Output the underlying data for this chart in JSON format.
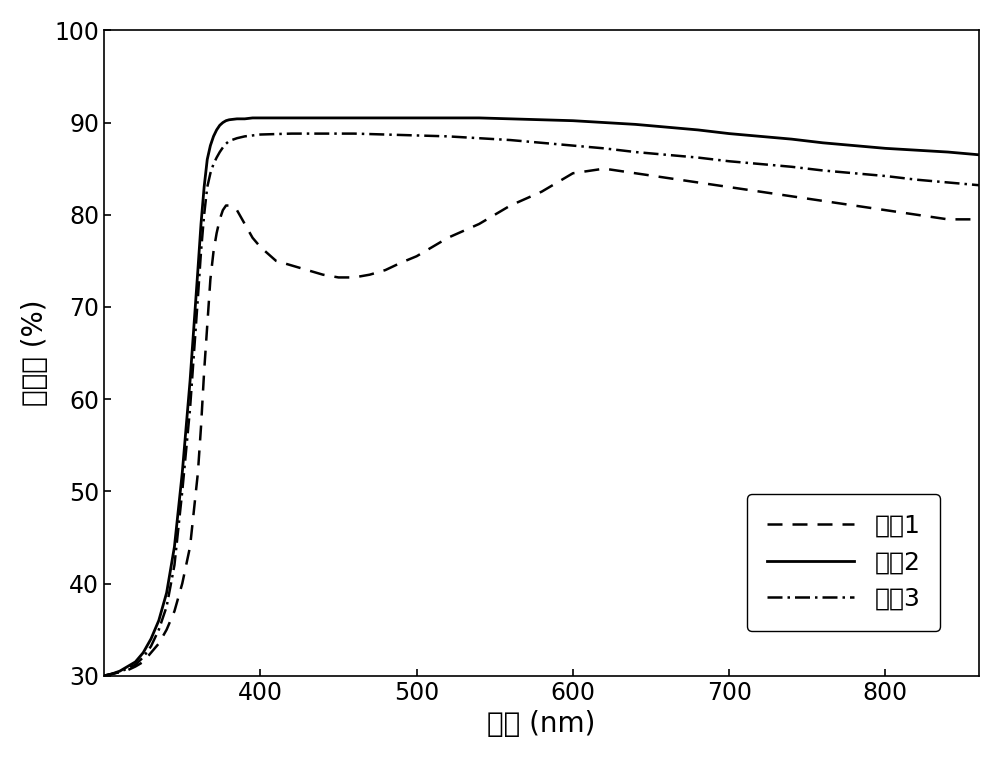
{
  "xlabel": "波长 (nm)",
  "ylabel": "透过率 (%)",
  "xlim": [
    300,
    860
  ],
  "ylim": [
    30,
    100
  ],
  "xticks": [
    400,
    500,
    600,
    700,
    800
  ],
  "yticks": [
    30,
    40,
    50,
    60,
    70,
    80,
    90,
    100
  ],
  "legend_labels": [
    "曲线1",
    "曲线2",
    "曲线3"
  ],
  "curve1": {
    "x": [
      300,
      305,
      310,
      315,
      320,
      325,
      330,
      335,
      340,
      345,
      350,
      355,
      360,
      362,
      364,
      366,
      368,
      370,
      372,
      374,
      376,
      378,
      380,
      385,
      390,
      395,
      400,
      410,
      420,
      430,
      440,
      450,
      460,
      470,
      480,
      490,
      500,
      520,
      540,
      560,
      580,
      600,
      620,
      640,
      660,
      680,
      700,
      720,
      740,
      760,
      780,
      800,
      820,
      840,
      860
    ],
    "y": [
      30,
      30.2,
      30.4,
      30.6,
      31,
      31.5,
      32.5,
      33.5,
      35,
      37,
      40,
      44,
      52,
      57,
      63,
      68,
      73,
      76,
      78,
      79.5,
      80.5,
      81,
      81,
      80.5,
      79,
      77.5,
      76.5,
      75,
      74.5,
      74,
      73.5,
      73.2,
      73.2,
      73.5,
      74,
      74.8,
      75.5,
      77.5,
      79,
      81,
      82.5,
      84.5,
      85,
      84.5,
      84,
      83.5,
      83,
      82.5,
      82,
      81.5,
      81,
      80.5,
      80,
      79.5,
      79.5
    ],
    "style": "dashed",
    "color": "#000000",
    "linewidth": 1.8
  },
  "curve2": {
    "x": [
      300,
      305,
      310,
      315,
      320,
      325,
      330,
      335,
      340,
      345,
      350,
      355,
      360,
      362,
      364,
      366,
      368,
      370,
      372,
      374,
      376,
      378,
      380,
      385,
      390,
      395,
      400,
      420,
      440,
      460,
      480,
      500,
      520,
      540,
      560,
      580,
      600,
      620,
      640,
      660,
      680,
      700,
      720,
      740,
      760,
      780,
      800,
      820,
      840,
      860
    ],
    "y": [
      30,
      30.2,
      30.5,
      31,
      31.5,
      32.5,
      34,
      36,
      39,
      44,
      52,
      62,
      74,
      79,
      83,
      86,
      87.5,
      88.5,
      89.2,
      89.7,
      90.0,
      90.2,
      90.3,
      90.4,
      90.4,
      90.5,
      90.5,
      90.5,
      90.5,
      90.5,
      90.5,
      90.5,
      90.5,
      90.5,
      90.4,
      90.3,
      90.2,
      90.0,
      89.8,
      89.5,
      89.2,
      88.8,
      88.5,
      88.2,
      87.8,
      87.5,
      87.2,
      87.0,
      86.8,
      86.5
    ],
    "style": "solid",
    "color": "#000000",
    "linewidth": 2.0
  },
  "curve3": {
    "x": [
      300,
      305,
      310,
      315,
      320,
      325,
      330,
      335,
      340,
      345,
      350,
      355,
      360,
      362,
      364,
      366,
      368,
      370,
      372,
      374,
      376,
      378,
      380,
      385,
      390,
      395,
      400,
      420,
      440,
      460,
      480,
      500,
      520,
      540,
      560,
      580,
      600,
      620,
      640,
      660,
      680,
      700,
      720,
      740,
      760,
      780,
      800,
      820,
      840,
      860
    ],
    "y": [
      30,
      30.2,
      30.4,
      30.8,
      31.2,
      32,
      33.2,
      35,
      37.5,
      42,
      50,
      59,
      71,
      76,
      80,
      83,
      84.5,
      85.5,
      86.2,
      86.8,
      87.3,
      87.7,
      88.0,
      88.3,
      88.5,
      88.6,
      88.7,
      88.8,
      88.8,
      88.8,
      88.7,
      88.6,
      88.5,
      88.3,
      88.1,
      87.8,
      87.5,
      87.2,
      86.8,
      86.5,
      86.2,
      85.8,
      85.5,
      85.2,
      84.8,
      84.5,
      84.2,
      83.8,
      83.5,
      83.2
    ],
    "style": "dashdot",
    "color": "#000000",
    "linewidth": 1.8
  },
  "fontsize_label": 20,
  "fontsize_tick": 17,
  "fontsize_legend": 18
}
